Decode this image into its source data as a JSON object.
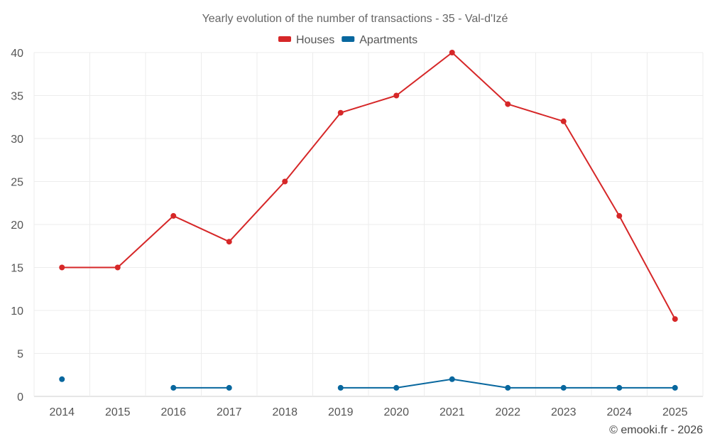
{
  "chart_data": {
    "type": "line",
    "title": "Yearly evolution of the number of transactions - 35 - Val-d'Izé",
    "categories": [
      "2014",
      "2015",
      "2016",
      "2017",
      "2018",
      "2019",
      "2020",
      "2021",
      "2022",
      "2023",
      "2024",
      "2025"
    ],
    "series": [
      {
        "name": "Houses",
        "color": "#d62728",
        "values": [
          15,
          15,
          21,
          18,
          25,
          33,
          35,
          40,
          34,
          32,
          21,
          9
        ]
      },
      {
        "name": "Apartments",
        "color": "#08679e",
        "values": [
          2,
          null,
          1,
          1,
          null,
          1,
          1,
          2,
          1,
          1,
          1,
          1
        ]
      }
    ],
    "ylim": [
      0,
      40
    ],
    "yticks": [
      0,
      5,
      10,
      15,
      20,
      25,
      30,
      35,
      40
    ],
    "grid": true,
    "legend_position": "top-center",
    "xlabel": "",
    "ylabel": ""
  },
  "credit": "© emooki.fr - 2026"
}
